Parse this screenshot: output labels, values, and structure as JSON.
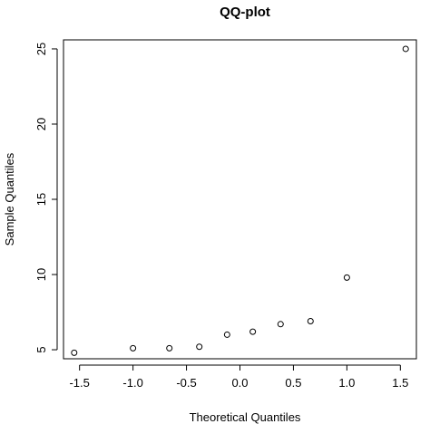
{
  "chart_data": {
    "type": "scatter",
    "title": "QQ-plot",
    "xlabel": "Theoretical Quantiles",
    "ylabel": "Sample Quantiles",
    "xlim": [
      -1.65,
      1.65
    ],
    "ylim": [
      4.4,
      25.6
    ],
    "xticks": [
      -1.5,
      -1.0,
      -0.5,
      0.0,
      0.5,
      1.0,
      1.5
    ],
    "xtick_labels": [
      "-1.5",
      "-1.0",
      "-0.5",
      "0.0",
      "0.5",
      "1.0",
      "1.5"
    ],
    "yticks": [
      5,
      10,
      15,
      20,
      25
    ],
    "ytick_labels": [
      "5",
      "10",
      "15",
      "20",
      "25"
    ],
    "grid": false,
    "points": [
      {
        "x": -1.55,
        "y": 4.8
      },
      {
        "x": -1.0,
        "y": 5.1
      },
      {
        "x": -0.66,
        "y": 5.1
      },
      {
        "x": -0.38,
        "y": 5.2
      },
      {
        "x": -0.12,
        "y": 6.0
      },
      {
        "x": 0.12,
        "y": 6.2
      },
      {
        "x": 0.38,
        "y": 6.7
      },
      {
        "x": 0.66,
        "y": 6.9
      },
      {
        "x": 1.0,
        "y": 9.8
      },
      {
        "x": 1.55,
        "y": 25.0
      }
    ]
  }
}
